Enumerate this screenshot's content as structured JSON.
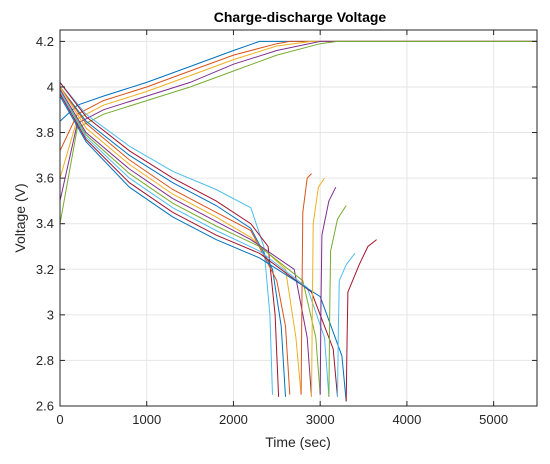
{
  "chart_data": {
    "type": "line",
    "title": "Charge-discharge Voltage",
    "xlabel": "Time (sec)",
    "ylabel": "Voltage (V)",
    "xlim": [
      0,
      5500
    ],
    "ylim": [
      2.6,
      4.25
    ],
    "x_ticks": [
      0,
      1000,
      2000,
      3000,
      4000,
      5000
    ],
    "y_ticks": [
      2.6,
      2.8,
      3,
      3.2,
      3.4,
      3.6,
      3.8,
      4,
      4.2
    ],
    "x_tick_labels": [
      "0",
      "1000",
      "2000",
      "3000",
      "4000",
      "5000"
    ],
    "y_tick_labels": [
      "2.6",
      "2.8",
      "3",
      "3.2",
      "3.4",
      "3.6",
      "3.8",
      "4",
      "4.2"
    ],
    "grid": true,
    "box": true,
    "colors": [
      "#0072BD",
      "#D95319",
      "#EDB120",
      "#7E2F8E",
      "#77AC30",
      "#4DBEEE",
      "#A2142F"
    ],
    "series": [
      {
        "group": "charge",
        "points": [
          [
            0,
            3.85
          ],
          [
            200,
            3.92
          ],
          [
            500,
            3.96
          ],
          [
            1000,
            4.02
          ],
          [
            1500,
            4.09
          ],
          [
            2000,
            4.16
          ],
          [
            2300,
            4.2
          ],
          [
            5500,
            4.2
          ]
        ]
      },
      {
        "group": "charge",
        "points": [
          [
            0,
            3.72
          ],
          [
            200,
            3.88
          ],
          [
            500,
            3.94
          ],
          [
            1000,
            4.0
          ],
          [
            1500,
            4.07
          ],
          [
            2000,
            4.14
          ],
          [
            2500,
            4.19
          ],
          [
            2650,
            4.2
          ],
          [
            5500,
            4.2
          ]
        ]
      },
      {
        "group": "charge",
        "points": [
          [
            0,
            3.6
          ],
          [
            200,
            3.86
          ],
          [
            500,
            3.92
          ],
          [
            1000,
            3.98
          ],
          [
            1500,
            4.05
          ],
          [
            2000,
            4.12
          ],
          [
            2500,
            4.18
          ],
          [
            2900,
            4.2
          ],
          [
            5500,
            4.2
          ]
        ]
      },
      {
        "group": "charge",
        "points": [
          [
            0,
            3.5
          ],
          [
            200,
            3.84
          ],
          [
            500,
            3.9
          ],
          [
            1000,
            3.96
          ],
          [
            1500,
            4.02
          ],
          [
            2000,
            4.1
          ],
          [
            2500,
            4.16
          ],
          [
            3000,
            4.2
          ],
          [
            5500,
            4.2
          ]
        ]
      },
      {
        "group": "charge",
        "points": [
          [
            0,
            3.4
          ],
          [
            200,
            3.82
          ],
          [
            500,
            3.88
          ],
          [
            1000,
            3.94
          ],
          [
            1500,
            4.0
          ],
          [
            2000,
            4.07
          ],
          [
            2500,
            4.14
          ],
          [
            3000,
            4.19
          ],
          [
            3200,
            4.2
          ],
          [
            5500,
            4.2
          ]
        ]
      },
      {
        "group": "discharge",
        "points": [
          [
            0,
            4.02
          ],
          [
            300,
            3.88
          ],
          [
            800,
            3.74
          ],
          [
            1300,
            3.63
          ],
          [
            1800,
            3.55
          ],
          [
            2200,
            3.47
          ],
          [
            2350,
            3.3
          ],
          [
            2420,
            3.0
          ],
          [
            2450,
            2.65
          ]
        ]
      },
      {
        "group": "discharge",
        "points": [
          [
            0,
            4.02
          ],
          [
            300,
            3.87
          ],
          [
            800,
            3.72
          ],
          [
            1300,
            3.6
          ],
          [
            1800,
            3.5
          ],
          [
            2200,
            3.4
          ],
          [
            2400,
            3.3
          ],
          [
            2480,
            3.0
          ],
          [
            2520,
            2.64
          ]
        ]
      },
      {
        "group": "discharge",
        "points": [
          [
            0,
            4.0
          ],
          [
            300,
            3.85
          ],
          [
            800,
            3.7
          ],
          [
            1300,
            3.58
          ],
          [
            1800,
            3.48
          ],
          [
            2200,
            3.38
          ],
          [
            2450,
            3.2
          ],
          [
            2550,
            2.95
          ],
          [
            2600,
            2.64
          ]
        ]
      },
      {
        "group": "discharge",
        "points": [
          [
            0,
            4.0
          ],
          [
            300,
            3.84
          ],
          [
            800,
            3.68
          ],
          [
            1300,
            3.55
          ],
          [
            1800,
            3.45
          ],
          [
            2200,
            3.37
          ],
          [
            2500,
            3.15
          ],
          [
            2600,
            2.95
          ],
          [
            2650,
            2.65
          ]
        ]
      },
      {
        "group": "discharge",
        "points": [
          [
            0,
            4.0
          ],
          [
            300,
            3.82
          ],
          [
            800,
            3.66
          ],
          [
            1300,
            3.53
          ],
          [
            1800,
            3.43
          ],
          [
            2200,
            3.34
          ],
          [
            2600,
            3.2
          ],
          [
            2720,
            2.9
          ],
          [
            2780,
            2.65
          ]
        ]
      },
      {
        "group": "discharge",
        "points": [
          [
            0,
            3.99
          ],
          [
            300,
            3.8
          ],
          [
            800,
            3.64
          ],
          [
            1300,
            3.51
          ],
          [
            1800,
            3.41
          ],
          [
            2200,
            3.33
          ],
          [
            2700,
            3.2
          ],
          [
            2850,
            2.9
          ],
          [
            2900,
            2.64
          ]
        ]
      },
      {
        "group": "discharge",
        "points": [
          [
            0,
            3.98
          ],
          [
            300,
            3.79
          ],
          [
            800,
            3.62
          ],
          [
            1300,
            3.49
          ],
          [
            1800,
            3.39
          ],
          [
            2300,
            3.3
          ],
          [
            2800,
            3.15
          ],
          [
            2950,
            2.9
          ],
          [
            3000,
            2.65
          ]
        ]
      },
      {
        "group": "discharge",
        "points": [
          [
            0,
            3.98
          ],
          [
            300,
            3.78
          ],
          [
            800,
            3.6
          ],
          [
            1300,
            3.47
          ],
          [
            1800,
            3.37
          ],
          [
            2300,
            3.28
          ],
          [
            2850,
            3.12
          ],
          [
            3050,
            2.9
          ],
          [
            3100,
            2.64
          ]
        ]
      },
      {
        "group": "discharge",
        "points": [
          [
            0,
            3.97
          ],
          [
            300,
            3.77
          ],
          [
            800,
            3.58
          ],
          [
            1300,
            3.45
          ],
          [
            1800,
            3.35
          ],
          [
            2300,
            3.27
          ],
          [
            2900,
            3.1
          ],
          [
            3150,
            2.85
          ],
          [
            3200,
            2.64
          ]
        ]
      },
      {
        "group": "discharge",
        "points": [
          [
            0,
            3.96
          ],
          [
            300,
            3.76
          ],
          [
            800,
            3.56
          ],
          [
            1300,
            3.43
          ],
          [
            1800,
            3.33
          ],
          [
            2300,
            3.25
          ],
          [
            3000,
            3.08
          ],
          [
            3250,
            2.82
          ],
          [
            3300,
            2.62
          ]
        ]
      },
      {
        "group": "rest",
        "points": [
          [
            2780,
            2.65
          ],
          [
            2790,
            3.1
          ],
          [
            2800,
            3.45
          ],
          [
            2850,
            3.6
          ],
          [
            2900,
            3.62
          ]
        ]
      },
      {
        "group": "rest",
        "points": [
          [
            2900,
            2.64
          ],
          [
            2910,
            3.05
          ],
          [
            2920,
            3.4
          ],
          [
            2980,
            3.56
          ],
          [
            3050,
            3.6
          ]
        ]
      },
      {
        "group": "rest",
        "points": [
          [
            3000,
            2.65
          ],
          [
            3010,
            3.05
          ],
          [
            3020,
            3.35
          ],
          [
            3100,
            3.5
          ],
          [
            3180,
            3.56
          ]
        ]
      },
      {
        "group": "rest",
        "points": [
          [
            3100,
            2.64
          ],
          [
            3110,
            3.0
          ],
          [
            3120,
            3.28
          ],
          [
            3200,
            3.42
          ],
          [
            3300,
            3.48
          ]
        ]
      },
      {
        "group": "rest",
        "points": [
          [
            3200,
            2.64
          ],
          [
            3210,
            2.95
          ],
          [
            3220,
            3.15
          ],
          [
            3300,
            3.22
          ],
          [
            3400,
            3.27
          ]
        ]
      },
      {
        "group": "rest",
        "points": [
          [
            3300,
            2.62
          ],
          [
            3310,
            2.9
          ],
          [
            3320,
            3.1
          ],
          [
            3450,
            3.22
          ],
          [
            3550,
            3.3
          ],
          [
            3650,
            3.33
          ]
        ]
      }
    ]
  }
}
